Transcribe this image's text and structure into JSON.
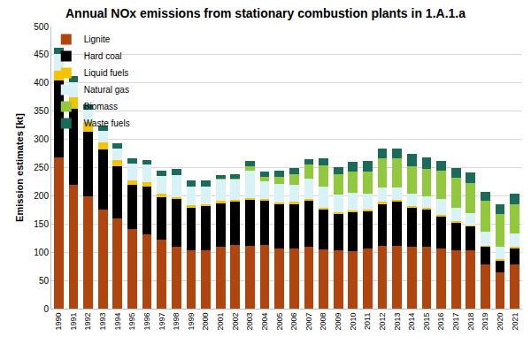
{
  "chart_data": {
    "type": "bar",
    "stacked": true,
    "title": "Annual NOx emissions from stationary combustion plants in 1.A.1.a",
    "y_label": "Emission estimates [kt]",
    "categories": [
      "1990",
      "1991",
      "1992",
      "1993",
      "1994",
      "1995",
      "1996",
      "1997",
      "1998",
      "1999",
      "2000",
      "2001",
      "2002",
      "2003",
      "2004",
      "2005",
      "2006",
      "2007",
      "2008",
      "2009",
      "2010",
      "2011",
      "2012",
      "2013",
      "2014",
      "2015",
      "2016",
      "2017",
      "2018",
      "2019",
      "2020",
      "2021"
    ],
    "series": [
      {
        "name": "Lignite",
        "color": "#b0450f",
        "values": [
          268,
          219,
          199,
          175,
          160,
          141,
          132,
          122,
          110,
          103,
          103,
          109,
          113,
          111,
          113,
          107,
          107,
          110,
          105,
          104,
          102,
          106,
          112,
          112,
          109,
          109,
          107,
          104,
          103,
          79,
          65,
          78
        ]
      },
      {
        "name": "Hard coal",
        "color": "#000000",
        "values": [
          137,
          135,
          115,
          107,
          93,
          79,
          85,
          75,
          84,
          77,
          79,
          79,
          77,
          82,
          79,
          78,
          79,
          82,
          72,
          65,
          70,
          67,
          74,
          79,
          71,
          67,
          57,
          49,
          43,
          31,
          21,
          29
        ]
      },
      {
        "name": "Liquid fuels",
        "color": "#f5c400",
        "values": [
          17,
          20,
          17,
          13,
          10,
          7,
          7,
          6,
          4,
          3,
          3,
          3,
          3,
          3,
          3,
          3,
          3,
          3,
          2,
          2,
          2,
          2,
          3,
          2,
          2,
          2,
          2,
          2,
          2,
          2,
          2,
          2
        ]
      },
      {
        "name": "Natural gas",
        "color": "#d9f2f7",
        "values": [
          30,
          27,
          22,
          20,
          20,
          30,
          31,
          32,
          38,
          34,
          32,
          38,
          37,
          48,
          30,
          33,
          31,
          35,
          38,
          31,
          32,
          28,
          26,
          22,
          21,
          21,
          29,
          24,
          22,
          24,
          21,
          24
        ]
      },
      {
        "name": "Biomass",
        "color": "#92c83e",
        "values": [
          0,
          0,
          0,
          0,
          0,
          0,
          0,
          0,
          0,
          0,
          0,
          1,
          1,
          8,
          9,
          13,
          19,
          26,
          37,
          36,
          37,
          40,
          52,
          52,
          50,
          49,
          50,
          53,
          52,
          55,
          59,
          52
        ]
      },
      {
        "name": "Waste fuels",
        "color": "#1b6b5a",
        "values": [
          10,
          12,
          9,
          9,
          10,
          9,
          9,
          10,
          11,
          10,
          10,
          6,
          7,
          9,
          9,
          10,
          11,
          9,
          12,
          13,
          17,
          19,
          17,
          17,
          21,
          20,
          17,
          18,
          19,
          16,
          17,
          18
        ]
      }
    ],
    "ylim": [
      0,
      500
    ],
    "yticks": [
      0,
      50,
      100,
      150,
      200,
      250,
      300,
      350,
      400,
      450,
      500
    ],
    "grid": true,
    "legend": "top"
  }
}
